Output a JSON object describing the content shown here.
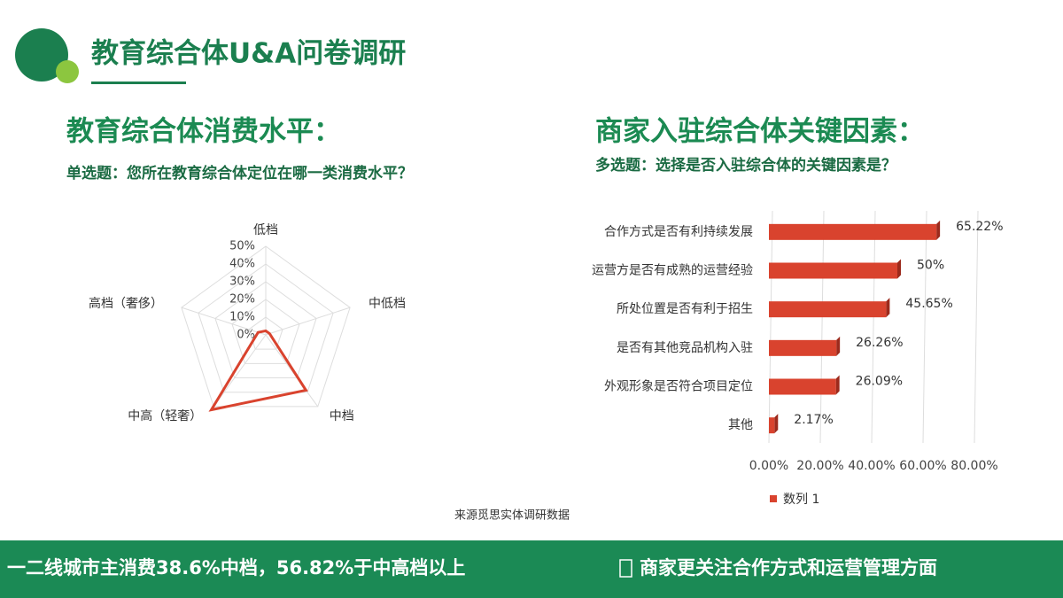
{
  "header": {
    "title": "教育综合体U&A问卷调研"
  },
  "chart_data": [
    {
      "type": "radar",
      "title": "教育综合体消费水平：",
      "subtitle": "单选题：您所在教育综合体定位在哪一类消费水平？",
      "categories": [
        "低档",
        "中低档",
        "中档",
        "中高（轻奢）",
        "高档（奢侈）"
      ],
      "values": [
        2.27,
        2.27,
        38.64,
        52.27,
        4.55
      ],
      "color": "#d9432e",
      "ylim": [
        0,
        50
      ],
      "yticks": [
        {
          "value": 0,
          "label": "0%"
        },
        {
          "value": 10,
          "label": "10%"
        },
        {
          "value": 20,
          "label": "20%"
        },
        {
          "value": 30,
          "label": "30%"
        },
        {
          "value": 40,
          "label": "40%"
        },
        {
          "value": 50,
          "label": "50%"
        }
      ],
      "grid": true
    },
    {
      "type": "hbar",
      "title": "商家入驻综合体关键因素：",
      "subtitle": "多选题：选择是否入驻综合体的关键因素是？",
      "categories": [
        "合作方式是否有利持续发展",
        "运营方是否有成熟的运营经验",
        "所处位置是否有利于招生",
        "是否有其他竞品机构入驻",
        "外观形象是否符合项目定位",
        "其他"
      ],
      "series": [
        {
          "name": "数列 1",
          "color": "#d9432e",
          "values": [
            65.22,
            50,
            45.65,
            26.26,
            26.09,
            2.17
          ],
          "value_labels": [
            "65.22%",
            "50%",
            "45.65%",
            "26.26%",
            "26.09%",
            "2.17%"
          ]
        }
      ],
      "xlim": [
        0,
        80
      ],
      "xticks": [
        {
          "value": 0,
          "label": "0.00%"
        },
        {
          "value": 20,
          "label": "20.00%"
        },
        {
          "value": 40,
          "label": "40.00%"
        },
        {
          "value": 60,
          "label": "60.00%"
        },
        {
          "value": 80,
          "label": "80.00%"
        }
      ],
      "grid": true,
      "legend": "bottom"
    }
  ],
  "source": "来源觅思实体调研数据",
  "footer": {
    "left": "一二线城市主消费38.6%中档，56.82%于中高档以上",
    "right": "商家更关注合作方式和运营管理方面"
  }
}
